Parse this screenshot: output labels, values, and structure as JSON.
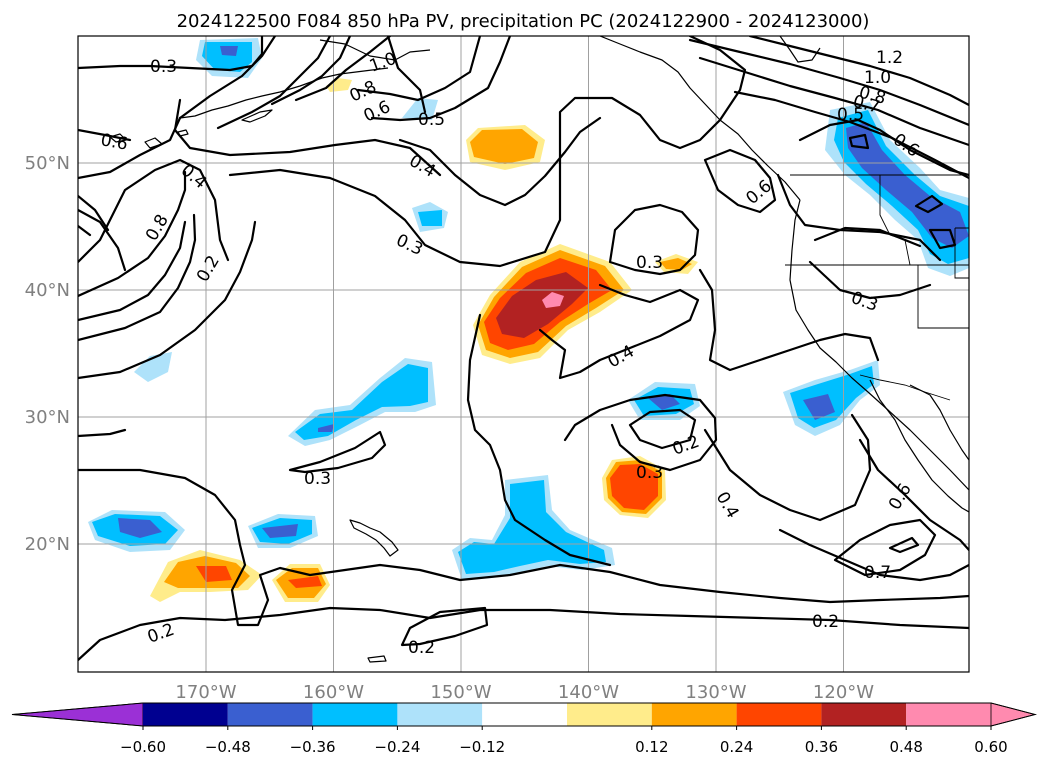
{
  "title": "2024122500 F084 850 hPa PV, precipitation PC (2024122900 - 2024123000)",
  "map": {
    "lon_ticks": [
      {
        "lon": -170,
        "label": "170°W"
      },
      {
        "lon": -160,
        "label": "160°W"
      },
      {
        "lon": -150,
        "label": "150°W"
      },
      {
        "lon": -140,
        "label": "140°W"
      },
      {
        "lon": -130,
        "label": "130°W"
      },
      {
        "lon": -120,
        "label": "120°W"
      }
    ],
    "lat_ticks": [
      {
        "lat": 50,
        "label": "50°N"
      },
      {
        "lat": 40,
        "label": "40°N"
      },
      {
        "lat": 30,
        "label": "30°N"
      },
      {
        "lat": 20,
        "label": "20°N"
      }
    ],
    "contour_labels": [
      "0.3",
      "1.0",
      "0.8",
      "0.6",
      "0.5",
      "1.2",
      "1.0",
      "0.8",
      "0.7",
      "0.5",
      "0.6",
      "0.6",
      "0.4",
      "0.4",
      "0.3",
      "0.8",
      "0.2",
      "0.3",
      "0.6",
      "0.3",
      "0.4",
      "0.2",
      "0.3",
      "0.3",
      "0.4",
      "0.6",
      "0.7",
      "0.2",
      "0.2",
      "0.2"
    ]
  },
  "colorbar": {
    "colors": [
      "#9b30d6",
      "#000090",
      "#3a5fd0",
      "#00bfff",
      "#aee2fa",
      "#ffffff",
      "#ffec8b",
      "#ffa500",
      "#ff4500",
      "#b22222",
      "#ff8aaf",
      "#ff8aaf"
    ],
    "tick_labels": [
      "−0.60",
      "−0.48",
      "−0.36",
      "−0.24",
      "−0.12",
      "0.12",
      "0.24",
      "0.36",
      "0.48",
      "0.60"
    ]
  }
}
